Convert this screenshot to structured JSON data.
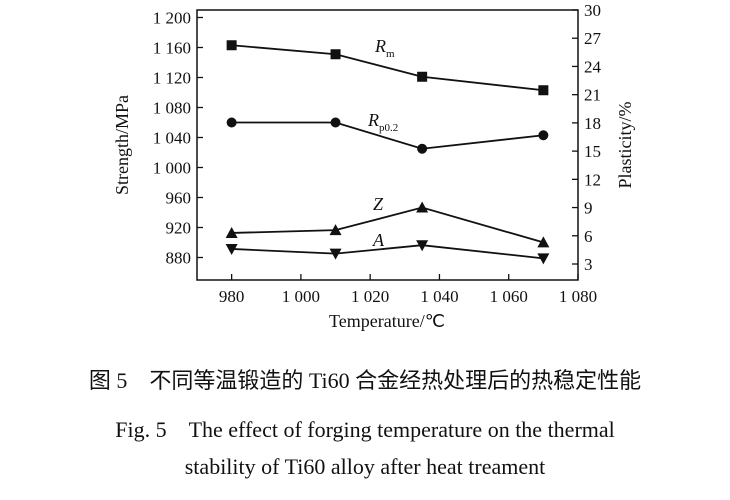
{
  "chart_data": {
    "type": "line",
    "x_label": "Temperature/℃",
    "y_label": "Strength/MPa",
    "y2_label": "Plasticity/%",
    "x": [
      980,
      1010,
      1035,
      1070
    ],
    "xlim": [
      970,
      1080
    ],
    "xticks": [
      980,
      {
        "value": 1000,
        "label": "1 000"
      },
      {
        "value": 1020,
        "label": "1 020"
      },
      {
        "value": 1040,
        "label": "1 040"
      },
      {
        "value": 1060,
        "label": "1 060"
      },
      {
        "value": 1080,
        "label": "1 080"
      }
    ],
    "ylim": [
      850,
      1210
    ],
    "yticks": [
      880,
      920,
      960,
      {
        "value": 1000,
        "label": "1 000"
      },
      {
        "value": 1040,
        "label": "1 040"
      },
      {
        "value": 1080,
        "label": "1 080"
      },
      {
        "value": 1120,
        "label": "1 120"
      },
      {
        "value": 1160,
        "label": "1 160"
      },
      {
        "value": 1200,
        "label": "1 200"
      }
    ],
    "y2lim": [
      1.3,
      30
    ],
    "y2ticks": [
      3,
      6,
      9,
      12,
      15,
      18,
      21,
      24,
      27,
      30
    ],
    "series": [
      {
        "name": "R",
        "subscript": "m",
        "marker": "square",
        "color": "#111",
        "values": [
          1163,
          1151,
          1121,
          1103
        ]
      },
      {
        "name": "R",
        "subscript": "p0.2",
        "marker": "circle",
        "color": "#111",
        "values": [
          1060,
          1060,
          1025,
          1043
        ]
      },
      {
        "name": "Z",
        "marker": "triangle-up",
        "color": "#111",
        "axis": "y2",
        "values": [
          6.3,
          6.6,
          9.0,
          5.3
        ]
      },
      {
        "name": "A",
        "marker": "triangle-down",
        "color": "#111",
        "axis": "y2",
        "values": [
          4.6,
          4.1,
          5.0,
          3.6
        ]
      }
    ]
  },
  "captions": {
    "zh": "图 5　不同等温锻造的 Ti60 合金经热处理后的热稳定性能",
    "en_line1": "Fig. 5　The effect of forging temperature on the thermal",
    "en_line2": "stability of Ti60 alloy after heat treament"
  }
}
